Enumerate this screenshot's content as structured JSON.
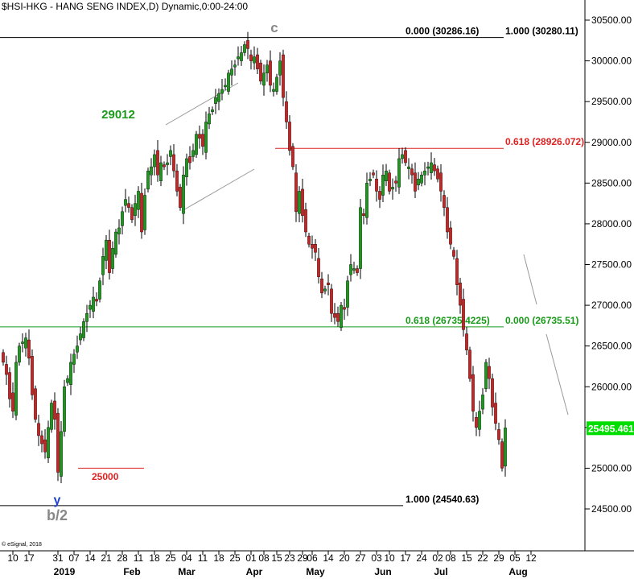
{
  "header": {
    "title": "$HSI-HKG - HANG SENG INDEX,D) Dynamic,0:00-24:00",
    "watermark": "© eSignal, 2018"
  },
  "colors": {
    "up_candle": "#1a9a1a",
    "down_candle": "#cc2222",
    "last_price_bg": "#00dd00",
    "fib_red": "#dd2222",
    "fib_green": "#1a9a1a",
    "wave_grey": "#888888",
    "wave_blue": "#1f3fcf"
  },
  "chart_data": {
    "type": "candlestick",
    "ylim": [
      24300,
      30750
    ],
    "y_ticks": [
      "30500.00",
      "30000.00",
      "29500.00",
      "29000.00",
      "28500.00",
      "28000.00",
      "27500.00",
      "27000.00",
      "26500.00",
      "26000.00",
      "25500.00",
      "25000.00",
      "24500.00"
    ],
    "last_price": "25495.461",
    "x_ticks": [
      {
        "label": "10",
        "i": 3
      },
      {
        "label": "17",
        "i": 8
      },
      {
        "label": "31",
        "i": 17
      },
      {
        "label": "07",
        "i": 22
      },
      {
        "label": "14",
        "i": 27
      },
      {
        "label": "21",
        "i": 32
      },
      {
        "label": "28",
        "i": 37
      },
      {
        "label": "11",
        "i": 42
      },
      {
        "label": "18",
        "i": 47
      },
      {
        "label": "25",
        "i": 52
      },
      {
        "label": "04",
        "i": 57
      },
      {
        "label": "11",
        "i": 62
      },
      {
        "label": "18",
        "i": 67
      },
      {
        "label": "25",
        "i": 72
      },
      {
        "label": "01",
        "i": 77
      },
      {
        "label": "08",
        "i": 81
      },
      {
        "label": "15",
        "i": 85
      },
      {
        "label": "23",
        "i": 89
      },
      {
        "label": "29",
        "i": 93
      },
      {
        "label": "06",
        "i": 96
      },
      {
        "label": "14",
        "i": 101
      },
      {
        "label": "20",
        "i": 106
      },
      {
        "label": "27",
        "i": 111
      },
      {
        "label": "03",
        "i": 116
      },
      {
        "label": "10",
        "i": 120
      },
      {
        "label": "17",
        "i": 125
      },
      {
        "label": "24",
        "i": 130
      },
      {
        "label": "02",
        "i": 135
      },
      {
        "label": "08",
        "i": 139
      },
      {
        "label": "15",
        "i": 144
      },
      {
        "label": "22",
        "i": 149
      },
      {
        "label": "29",
        "i": 154
      },
      {
        "label": "05",
        "i": 159
      },
      {
        "label": "12",
        "i": 164
      }
    ],
    "x_months": [
      {
        "label": "2019",
        "i": 19
      },
      {
        "label": "Feb",
        "i": 40
      },
      {
        "label": "Mar",
        "i": 57
      },
      {
        "label": "Apr",
        "i": 78
      },
      {
        "label": "May",
        "i": 97
      },
      {
        "label": "Jun",
        "i": 118
      },
      {
        "label": "Jul",
        "i": 136
      },
      {
        "label": "Aug",
        "i": 160
      }
    ],
    "closes": [
      26300,
      26150,
      25850,
      25700,
      26300,
      26500,
      26550,
      26600,
      26350,
      25900,
      25600,
      25400,
      25300,
      25200,
      25500,
      25800,
      25600,
      24950,
      25450,
      26000,
      26100,
      26300,
      26400,
      26500,
      26650,
      26800,
      26900,
      27000,
      27100,
      27050,
      27300,
      27600,
      27800,
      27400,
      27700,
      27900,
      27950,
      28150,
      28300,
      28200,
      28050,
      28250,
      28400,
      27900,
      28350,
      28650,
      28700,
      28850,
      28600,
      28750,
      28700,
      28750,
      28900,
      28650,
      28400,
      28200,
      28600,
      28800,
      28750,
      28900,
      29100,
      29050,
      28950,
      29250,
      29350,
      29400,
      29550,
      29600,
      29650,
      29700,
      29850,
      29900,
      29950,
      30050,
      30100,
      30200,
      30150,
      30000,
      30050,
      29900,
      29750,
      29850,
      29950,
      29700,
      29650,
      29800,
      30000,
      29550,
      29250,
      28900,
      28700,
      28150,
      28400,
      28100,
      27900,
      27750,
      27700,
      27650,
      27350,
      27150,
      27200,
      27250,
      26900,
      26850,
      26800,
      27000,
      26950,
      27300,
      27500,
      27450,
      27400,
      28200,
      28100,
      28500,
      28550,
      28600,
      28400,
      28300,
      28600,
      28650,
      28400,
      28450,
      28500,
      28800,
      28850,
      28750,
      28700,
      28600,
      28400,
      28550,
      28600,
      28650,
      28700,
      28750,
      28650,
      28550,
      28400,
      28200,
      27900,
      27750,
      27600,
      27250,
      27000,
      26700,
      26450,
      26100,
      25700,
      25500,
      25700,
      25900,
      26300,
      26100,
      25750,
      25550,
      25350,
      25000,
      25495
    ],
    "annotations": [
      {
        "text": "c",
        "kind": "wave",
        "color": "grey"
      },
      {
        "text": "y",
        "kind": "wave",
        "color": "blue"
      },
      {
        "text": "b/2",
        "kind": "wave",
        "color": "grey"
      },
      {
        "text": "29012",
        "kind": "level",
        "color": "green",
        "value": 29012
      },
      {
        "text": "25000",
        "kind": "level",
        "color": "red",
        "value": 25000
      }
    ],
    "levels": [
      {
        "label_left": "0.000 (30286.16)",
        "label_right": "1.000 (30280.11)",
        "value": 30286.16,
        "color": "black"
      },
      {
        "label_left": "",
        "label_right": "0.618 (28926.072)",
        "value": 28926.072,
        "color": "red"
      },
      {
        "label_left": "0.618 (26735.4225)",
        "label_right": "0.000 (26735.51)",
        "value": 26735.51,
        "color": "green"
      },
      {
        "label_left": "1.000 (24540.63)",
        "label_right": "",
        "value": 24540.63,
        "color": "black"
      }
    ]
  }
}
